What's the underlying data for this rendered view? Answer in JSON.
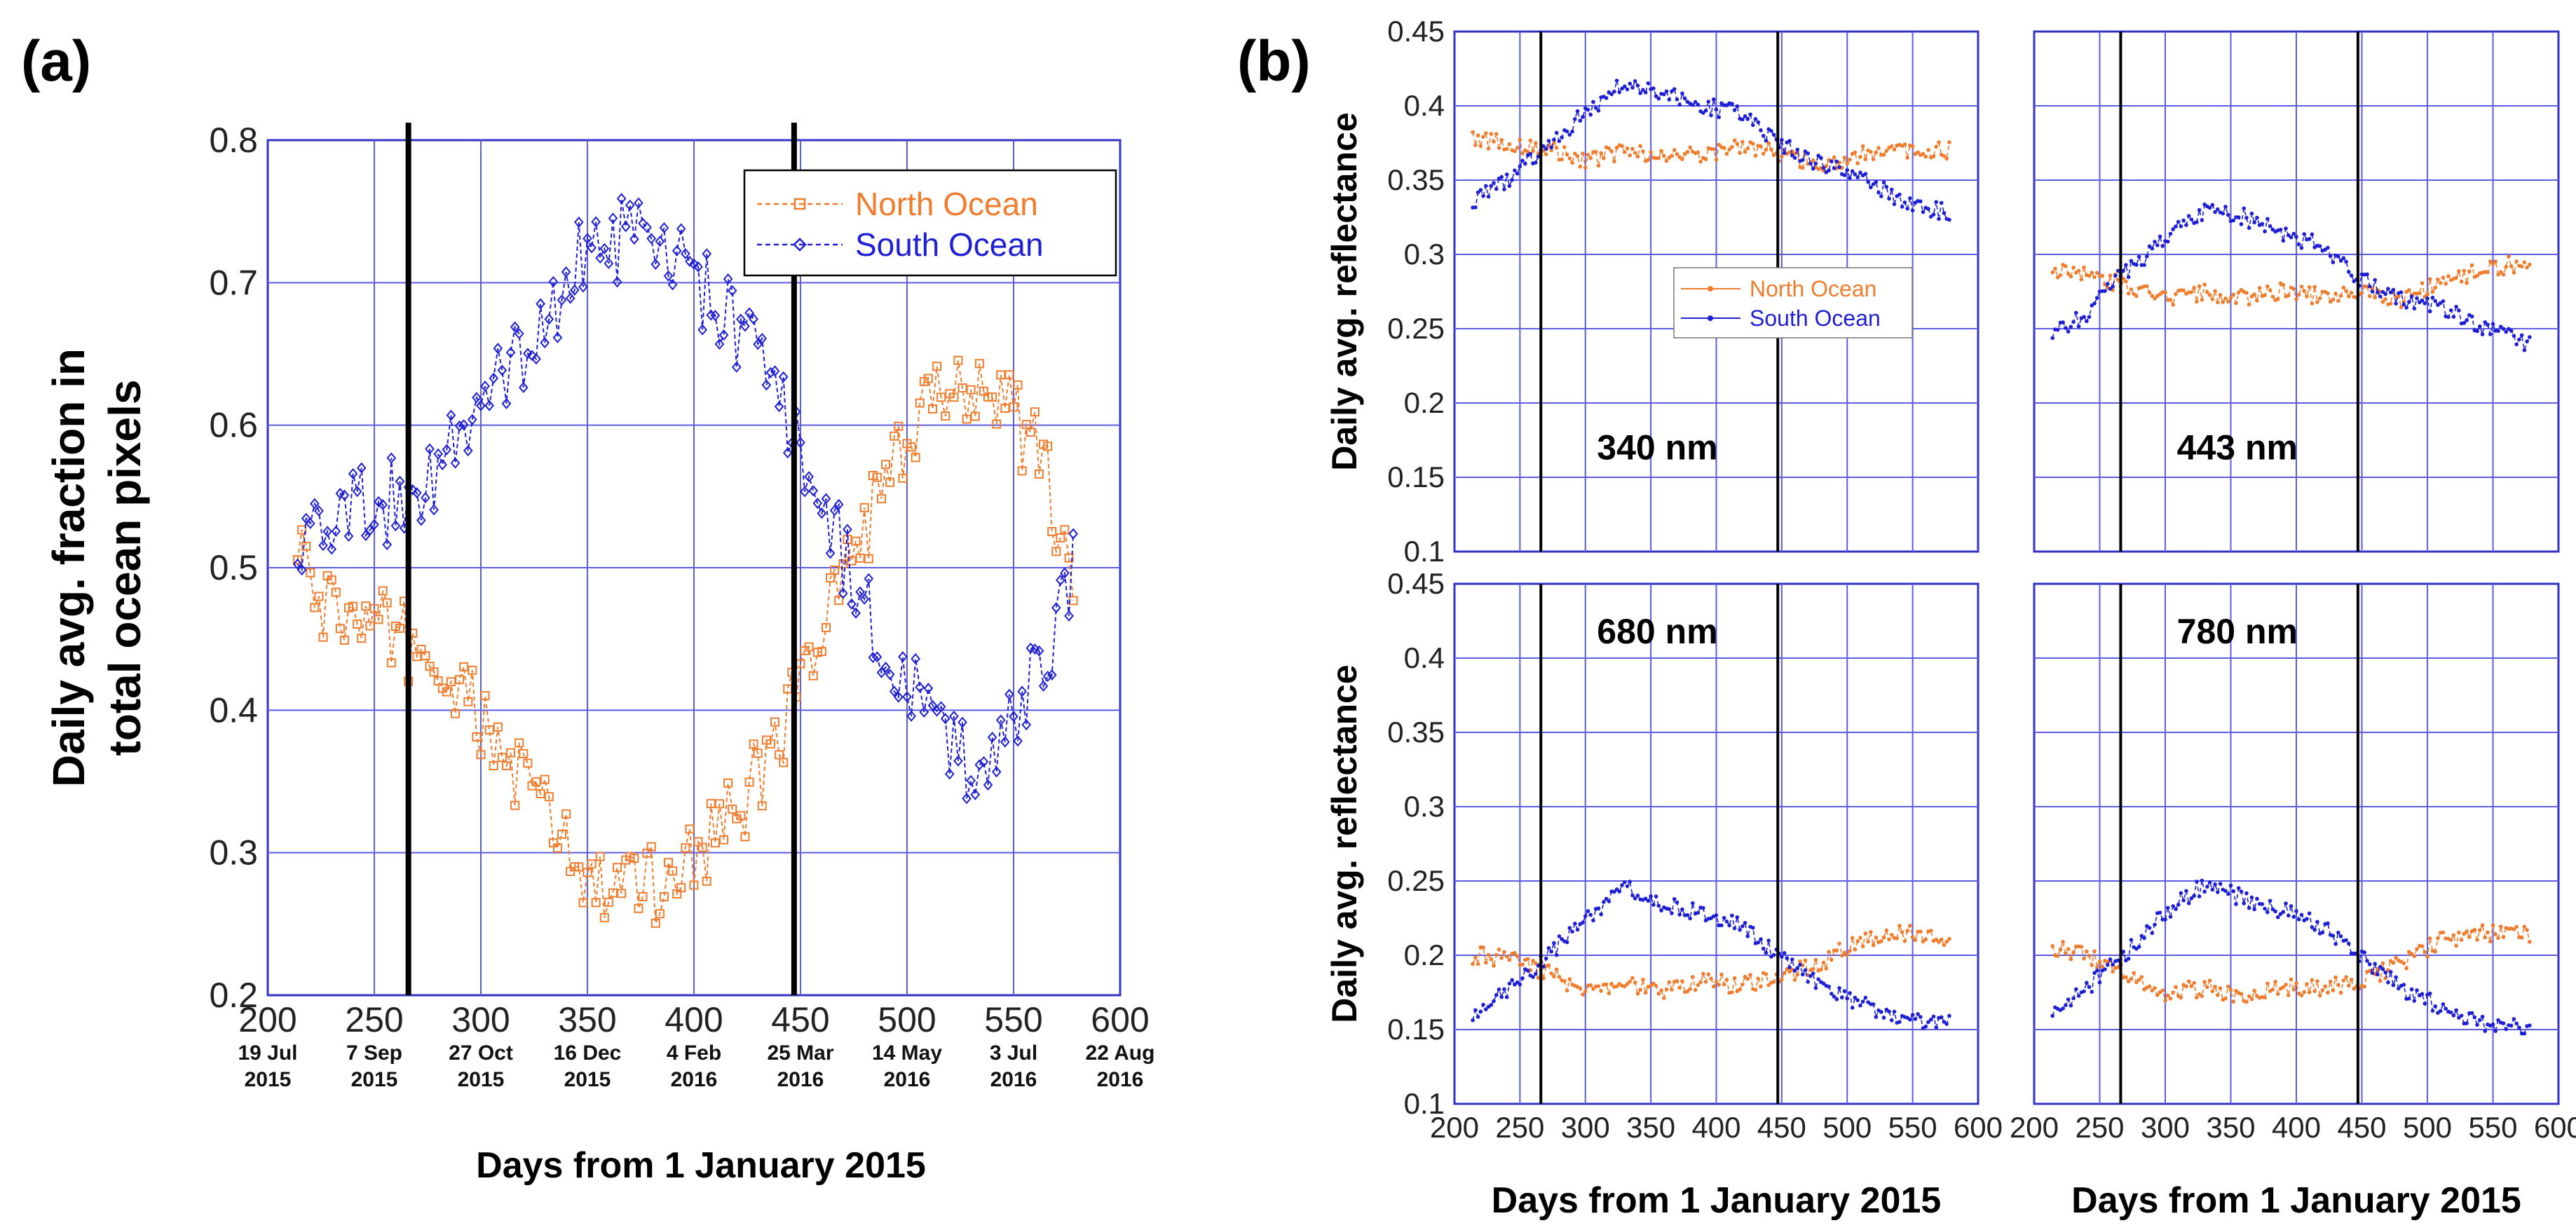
{
  "colors": {
    "north": "#F07D2E",
    "south": "#1F1FD6",
    "grid": "#5B5BE3",
    "frame": "#3232C8",
    "season": "#000000"
  },
  "chart_data": [
    {
      "type": "line",
      "panel_label": "(a)",
      "ylabel_lines": [
        "Daily avg. fraction in",
        "total ocean pixels"
      ],
      "xlabel": "Days from 1 January 2015",
      "xlim": [
        200,
        600
      ],
      "ylim": [
        0.2,
        0.8
      ],
      "xticks": [
        "200",
        "250",
        "300",
        "350",
        "400",
        "450",
        "500",
        "550",
        "600"
      ],
      "yticks": [
        "0.2",
        "0.3",
        "0.4",
        "0.5",
        "0.6",
        "0.7",
        "0.8"
      ],
      "date_labels": [
        {
          "day": 200,
          "line1": "19 Jul",
          "line2": "2015"
        },
        {
          "day": 250,
          "line1": "7 Sep",
          "line2": "2015"
        },
        {
          "day": 300,
          "line1": "27 Oct",
          "line2": "2015"
        },
        {
          "day": 350,
          "line1": "16 Dec",
          "line2": "2015"
        },
        {
          "day": 400,
          "line1": "4  Feb",
          "line2": "2016"
        },
        {
          "day": 450,
          "line1": "25 Mar",
          "line2": "2016"
        },
        {
          "day": 500,
          "line1": "14 May",
          "line2": "2016"
        },
        {
          "day": 550,
          "line1": "3 Jul",
          "line2": "2016"
        },
        {
          "day": 600,
          "line1": "22 Aug",
          "line2": "2016"
        }
      ],
      "vlines": [
        266,
        447
      ],
      "legend": {
        "position": "top-right",
        "entries": [
          "North Ocean",
          "South Ocean"
        ]
      },
      "series": [
        {
          "name": "North Ocean",
          "x": [
            214,
            230,
            250,
            266,
            285,
            300,
            320,
            340,
            350,
            370,
            390,
            410,
            430,
            447,
            465,
            480,
            500,
            515,
            530,
            545,
            560,
            572,
            578
          ],
          "y": [
            0.5,
            0.47,
            0.455,
            0.45,
            0.42,
            0.39,
            0.35,
            0.305,
            0.275,
            0.27,
            0.285,
            0.315,
            0.35,
            0.41,
            0.47,
            0.53,
            0.58,
            0.62,
            0.635,
            0.625,
            0.58,
            0.53,
            0.5
          ]
        },
        {
          "name": "South Ocean",
          "x": [
            214,
            230,
            250,
            266,
            285,
            300,
            320,
            340,
            350,
            370,
            390,
            410,
            430,
            447,
            465,
            480,
            500,
            515,
            530,
            545,
            560,
            572,
            578
          ],
          "y": [
            0.5,
            0.53,
            0.545,
            0.55,
            0.58,
            0.61,
            0.65,
            0.695,
            0.725,
            0.73,
            0.715,
            0.685,
            0.65,
            0.59,
            0.53,
            0.47,
            0.42,
            0.38,
            0.365,
            0.375,
            0.42,
            0.47,
            0.5
          ]
        }
      ]
    },
    {
      "type": "line",
      "panel_label": "(b)",
      "wavelength": "340 nm",
      "ylabel": "Daily avg. reflectance",
      "xlim": [
        200,
        600
      ],
      "ylim": [
        0.1,
        0.45
      ],
      "yticks": [
        "0.1",
        "0.15",
        "0.2",
        "0.25",
        "0.3",
        "0.35",
        "0.4",
        "0.45"
      ],
      "vlines": [
        266,
        447
      ],
      "legend": {
        "position": "center",
        "entries": [
          "North Ocean",
          "South Ocean"
        ]
      },
      "series": [
        {
          "name": "North Ocean",
          "x": [
            214,
            240,
            266,
            300,
            330,
            360,
            390,
            420,
            447,
            480,
            510,
            540,
            578
          ],
          "y": [
            0.378,
            0.375,
            0.372,
            0.362,
            0.37,
            0.365,
            0.368,
            0.372,
            0.368,
            0.36,
            0.367,
            0.37,
            0.37
          ]
        },
        {
          "name": "South Ocean",
          "x": [
            214,
            240,
            266,
            300,
            330,
            360,
            390,
            420,
            447,
            480,
            510,
            540,
            578
          ],
          "y": [
            0.335,
            0.35,
            0.37,
            0.395,
            0.415,
            0.41,
            0.4,
            0.395,
            0.375,
            0.36,
            0.355,
            0.335,
            0.328
          ]
        }
      ]
    },
    {
      "type": "line",
      "wavelength": "443 nm",
      "xlim": [
        200,
        600
      ],
      "ylim": [
        0.1,
        0.45
      ],
      "vlines": [
        266,
        447
      ],
      "series": [
        {
          "name": "North Ocean",
          "x": [
            214,
            240,
            266,
            300,
            330,
            360,
            390,
            420,
            447,
            480,
            510,
            540,
            578
          ],
          "y": [
            0.29,
            0.285,
            0.28,
            0.27,
            0.275,
            0.27,
            0.275,
            0.272,
            0.275,
            0.27,
            0.28,
            0.29,
            0.295
          ]
        },
        {
          "name": "South Ocean",
          "x": [
            214,
            240,
            266,
            300,
            330,
            360,
            390,
            420,
            447,
            480,
            510,
            540,
            578
          ],
          "y": [
            0.245,
            0.26,
            0.285,
            0.31,
            0.33,
            0.325,
            0.315,
            0.305,
            0.285,
            0.27,
            0.265,
            0.25,
            0.24
          ]
        }
      ]
    },
    {
      "type": "line",
      "wavelength": "680 nm",
      "ylabel": "Daily avg. reflectance",
      "xlabel": "Days from 1 January 2015",
      "xlim": [
        200,
        600
      ],
      "ylim": [
        0.1,
        0.45
      ],
      "xticks": [
        "200",
        "250",
        "300",
        "350",
        "400",
        "450",
        "500",
        "550",
        "600"
      ],
      "yticks": [
        "0.1",
        "0.15",
        "0.2",
        "0.25",
        "0.3",
        "0.35",
        "0.4",
        "0.45"
      ],
      "vlines": [
        266,
        447
      ],
      "series": [
        {
          "name": "North Ocean",
          "x": [
            214,
            240,
            266,
            300,
            330,
            360,
            390,
            420,
            447,
            480,
            510,
            540,
            578
          ],
          "y": [
            0.2,
            0.198,
            0.19,
            0.175,
            0.18,
            0.175,
            0.182,
            0.18,
            0.185,
            0.195,
            0.21,
            0.215,
            0.21
          ]
        },
        {
          "name": "South Ocean",
          "x": [
            214,
            240,
            266,
            300,
            330,
            360,
            390,
            420,
            447,
            480,
            510,
            540,
            578
          ],
          "y": [
            0.16,
            0.175,
            0.195,
            0.225,
            0.245,
            0.235,
            0.228,
            0.22,
            0.2,
            0.18,
            0.168,
            0.155,
            0.155
          ]
        }
      ]
    },
    {
      "type": "line",
      "wavelength": "780 nm",
      "xlabel": "Days from 1 January 2015",
      "xlim": [
        200,
        600
      ],
      "ylim": [
        0.1,
        0.45
      ],
      "xticks": [
        "200",
        "250",
        "300",
        "350",
        "400",
        "450",
        "500",
        "550",
        "600"
      ],
      "vlines": [
        266,
        447
      ],
      "series": [
        {
          "name": "North Ocean",
          "x": [
            214,
            240,
            266,
            300,
            330,
            360,
            390,
            420,
            447,
            480,
            510,
            540,
            578
          ],
          "y": [
            0.205,
            0.2,
            0.19,
            0.175,
            0.178,
            0.172,
            0.178,
            0.178,
            0.182,
            0.195,
            0.21,
            0.215,
            0.215
          ]
        },
        {
          "name": "South Ocean",
          "x": [
            214,
            240,
            266,
            300,
            330,
            360,
            390,
            420,
            447,
            480,
            510,
            540,
            578
          ],
          "y": [
            0.16,
            0.178,
            0.198,
            0.228,
            0.248,
            0.238,
            0.23,
            0.22,
            0.2,
            0.178,
            0.165,
            0.155,
            0.152
          ]
        }
      ]
    }
  ]
}
